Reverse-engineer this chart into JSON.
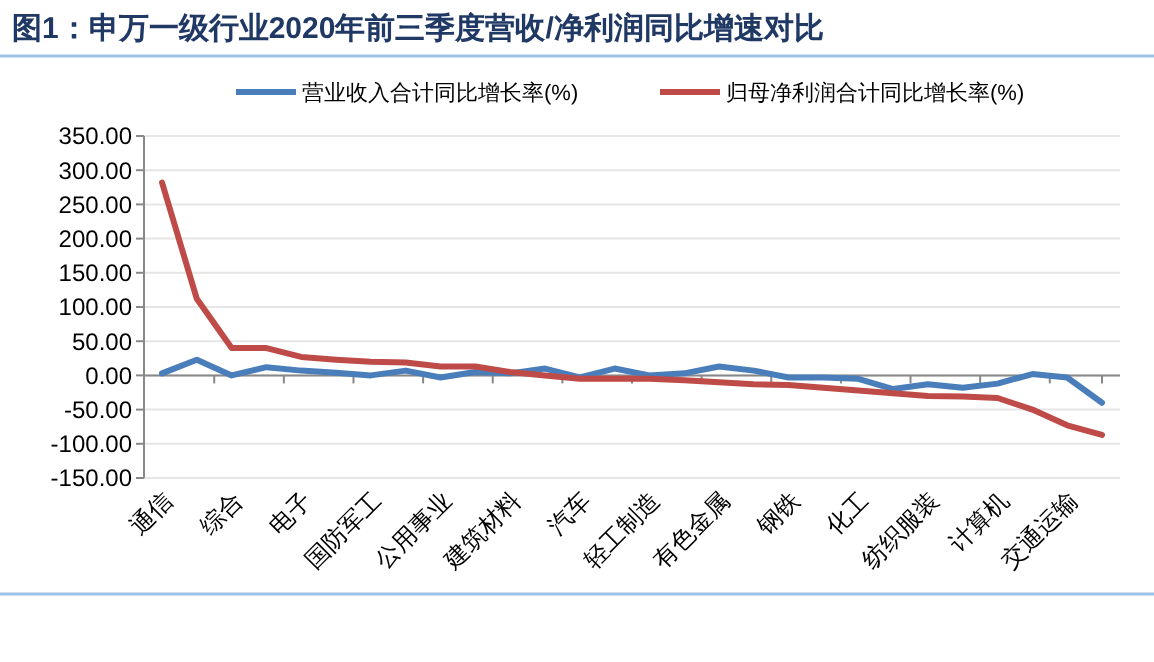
{
  "chart_data": {
    "type": "line",
    "title": "图1：申万一级行业2020年前三季度营收/净利润同比增速对比",
    "categories": [
      "通信",
      null,
      "综合",
      null,
      "电子",
      null,
      "国防军工",
      null,
      "公用事业",
      null,
      "建筑材料",
      null,
      "汽车",
      null,
      "轻工制造",
      null,
      "有色金属",
      null,
      "钢铁",
      null,
      "化工",
      null,
      "纺织服装",
      null,
      "计算机",
      null,
      "交通运输",
      null
    ],
    "series": [
      {
        "name": "营业收入合计同比增长率(%)",
        "color": "#4a7ebb",
        "values": [
          3,
          23,
          0,
          12,
          7,
          4,
          0,
          7,
          -3,
          5,
          3,
          10,
          -3,
          10,
          0,
          3,
          13,
          7,
          -3,
          -3,
          -5,
          -20,
          -13,
          -18,
          -12,
          2,
          -3,
          -40
        ]
      },
      {
        "name": "归母净利润合计同比增长率(%)",
        "color": "#be4b48",
        "values": [
          282,
          112,
          40,
          40,
          27,
          23,
          20,
          19,
          13,
          13,
          5,
          0,
          -5,
          -5,
          -5,
          -7,
          -10,
          -13,
          -14,
          -18,
          -22,
          -26,
          -30,
          -31,
          -33,
          -50,
          -73,
          -87
        ]
      }
    ],
    "ylim": [
      -150,
      350
    ],
    "yticks": [
      {
        "value": -150,
        "label": "-150.00"
      },
      {
        "value": -100,
        "label": "-100.00"
      },
      {
        "value": -50,
        "label": "-50.00"
      },
      {
        "value": 0,
        "label": "0.00"
      },
      {
        "value": 50,
        "label": "50.00"
      },
      {
        "value": 100,
        "label": "100.00"
      },
      {
        "value": 150,
        "label": "150.00"
      },
      {
        "value": 200,
        "label": "200.00"
      },
      {
        "value": 250,
        "label": "250.00"
      },
      {
        "value": 300,
        "label": "300.00"
      },
      {
        "value": 350,
        "label": "350.00"
      }
    ],
    "grid": "y",
    "legend": "top",
    "marker": "none",
    "line_style": "solid"
  }
}
